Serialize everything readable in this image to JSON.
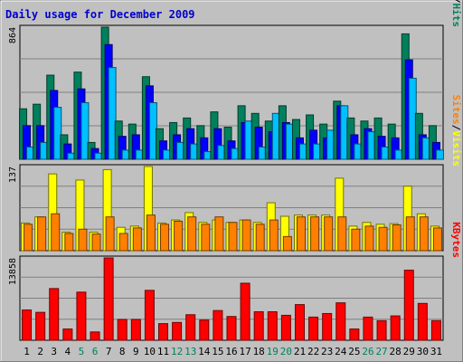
{
  "chart_data": {
    "type": "bar",
    "title": "Daily usage for December 2009",
    "colors": {
      "background": "#c0c0c0",
      "border": "#808080",
      "title": "#0000cc",
      "hits": "#00805c",
      "files": "#0000ff",
      "pages": "#00c0ff",
      "visits": "#ffff00",
      "sites": "#ff8000",
      "kbytes": "#ff0000",
      "weekend_label": "#00805c",
      "weekday_label": "#000000"
    },
    "categories": [
      "1",
      "2",
      "3",
      "4",
      "5",
      "6",
      "7",
      "8",
      "9",
      "10",
      "11",
      "12",
      "13",
      "14",
      "15",
      "16",
      "17",
      "18",
      "19",
      "20",
      "21",
      "22",
      "23",
      "24",
      "25",
      "26",
      "27",
      "28",
      "29",
      "30",
      "31"
    ],
    "weekend_days": [
      "5",
      "6",
      "12",
      "13",
      "19",
      "20",
      "26",
      "27"
    ],
    "panels": [
      {
        "id": "hits-panel",
        "ymax": 864,
        "ymax_label": "864",
        "legend": [
          {
            "text": "Pages",
            "color": "#00c0ff"
          },
          {
            "text": "/",
            "color": "#000000"
          },
          {
            "text": "Files",
            "color": "#0000ff"
          },
          {
            "text": "/",
            "color": "#000000"
          },
          {
            "text": "Hits",
            "color": "#00805c"
          }
        ],
        "series": [
          {
            "name": "Hits",
            "color": "#00805c",
            "values": [
              330,
              360,
              550,
              160,
              570,
              110,
              864,
              250,
              230,
              540,
              200,
              240,
              270,
              220,
              310,
              210,
              350,
              300,
              250,
              350,
              260,
              290,
              230,
              380,
              270,
              250,
              270,
              230,
              820,
              300,
              220
            ]
          },
          {
            "name": "Files",
            "color": "#0000ff",
            "values": [
              220,
              220,
              450,
              100,
              460,
              70,
              750,
              150,
              160,
              480,
              120,
              160,
              200,
              140,
              200,
              120,
              240,
              210,
              180,
              240,
              140,
              190,
              140,
              350,
              160,
              200,
              150,
              140,
              650,
              160,
              110
            ]
          },
          {
            "name": "Pages",
            "color": "#00c0ff",
            "values": [
              80,
              110,
              340,
              40,
              370,
              40,
              600,
              60,
              60,
              370,
              60,
              110,
              100,
              50,
              90,
              70,
              250,
              80,
              300,
              230,
              100,
              100,
              190,
              350,
              100,
              180,
              80,
              60,
              530,
              140,
              60
            ]
          }
        ]
      },
      {
        "id": "visits-panel",
        "ymax": 137,
        "ymax_label": "137",
        "legend": [
          {
            "text": "Sites",
            "color": "#ff8000"
          },
          {
            "text": "/",
            "color": "#000000"
          },
          {
            "text": "Visits",
            "color": "#ffff00"
          }
        ],
        "series": [
          {
            "name": "Visits",
            "color": "#ffff00",
            "values": [
              45,
              55,
              125,
              30,
              115,
              30,
              132,
              38,
              40,
              137,
              45,
              50,
              62,
              46,
              50,
              46,
              50,
              46,
              78,
              56,
              58,
              58,
              58,
              118,
              40,
              46,
              43,
              44,
              105,
              60,
              40
            ]
          },
          {
            "name": "Sites",
            "color": "#ff8000",
            "values": [
              43,
              55,
              60,
              28,
              35,
              27,
              55,
              28,
              37,
              58,
              43,
              48,
              55,
              43,
              55,
              46,
              50,
              43,
              50,
              23,
              55,
              55,
              55,
              55,
              35,
              40,
              38,
              42,
              55,
              55,
              37
            ]
          }
        ]
      },
      {
        "id": "kbytes-panel",
        "ymax": 13858,
        "ymax_label": "13858",
        "legend": [
          {
            "text": "KBytes",
            "color": "#ff0000"
          }
        ],
        "series": [
          {
            "name": "KBytes",
            "color": "#ff0000",
            "values": [
              5100,
              4700,
              8700,
              1900,
              8100,
              1400,
              13858,
              3500,
              3500,
              8400,
              2800,
              3000,
              4300,
              3400,
              5000,
              4000,
              9600,
              4800,
              4800,
              4200,
              6000,
              3900,
              4500,
              6300,
              1900,
              3900,
              3300,
              4100,
              11800,
              6200,
              3300
            ]
          }
        ]
      }
    ]
  }
}
